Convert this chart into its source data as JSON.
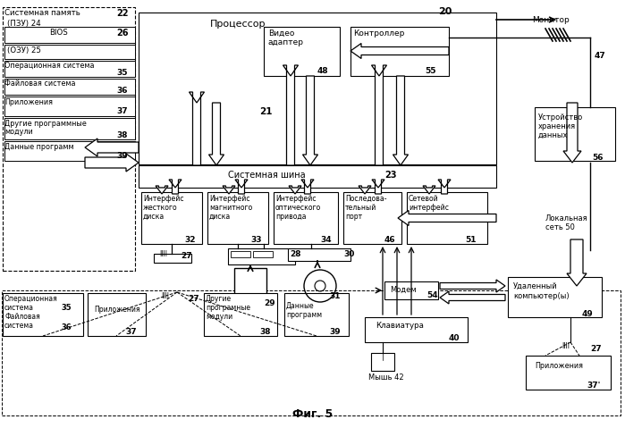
{
  "caption": "Фиг. 5",
  "bg": "#ffffff",
  "label_20": "20",
  "label_47": "47"
}
